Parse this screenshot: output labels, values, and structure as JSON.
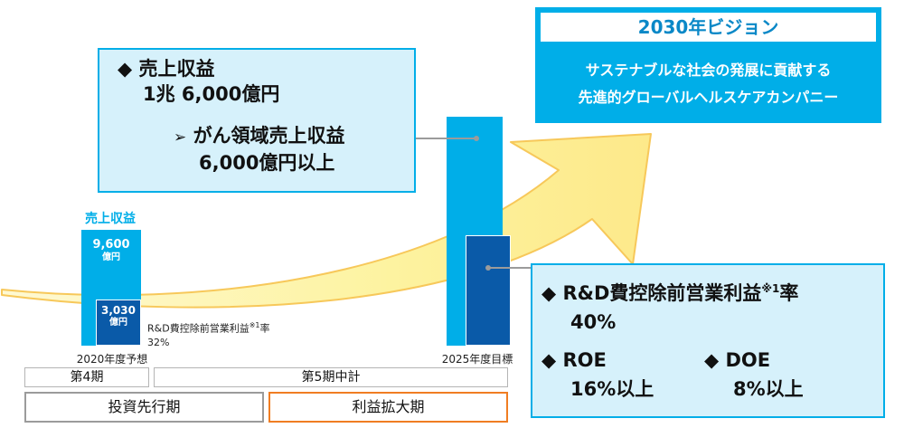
{
  "vision": {
    "title": "2030年ビジョン",
    "line1": "サステナブルな社会の発展に貢献する",
    "line2": "先進的グローバルヘルスケアカンパニー"
  },
  "revenue_callout": {
    "bullet": "◆",
    "heading": "売上収益",
    "value": "1兆 6,000億円",
    "sub_bullet": "➢",
    "sub_heading": "がん領域売上収益",
    "sub_value": "6,000億円以上"
  },
  "profit_callout": {
    "bullet": "◆",
    "rd_label": "R&D費控除前営業利益",
    "rd_note": "※1",
    "rd_suffix": "率",
    "rd_value": "40%",
    "roe_label": "ROE",
    "roe_value": "16%以上",
    "doe_label": "DOE",
    "doe_value": "8%以上"
  },
  "left_bars": {
    "revenue_label": "売上収益",
    "revenue_value": "9,600",
    "revenue_unit": "億円",
    "profit_value": "3,030",
    "profit_unit": "億円",
    "profit_label": "R&D費控除前営業利益",
    "profit_note": "※1",
    "profit_suffix": "率",
    "profit_rate": "32%",
    "year_label": "2020年度予想"
  },
  "right_bars": {
    "year_label": "2025年度目標"
  },
  "periods": {
    "phase4": "第4期",
    "phase5": "第5期中計",
    "investment": "投資先行期",
    "expansion": "利益拡大期"
  },
  "colors": {
    "light_blue": "#00aee8",
    "dark_blue": "#0a5aa8",
    "callout_fill": "#d6f1fb",
    "arrow_fill": "#fdf6a5",
    "arrow_edge": "#f7c85a",
    "orange": "#f07d22",
    "gray": "#9b9b9b"
  }
}
